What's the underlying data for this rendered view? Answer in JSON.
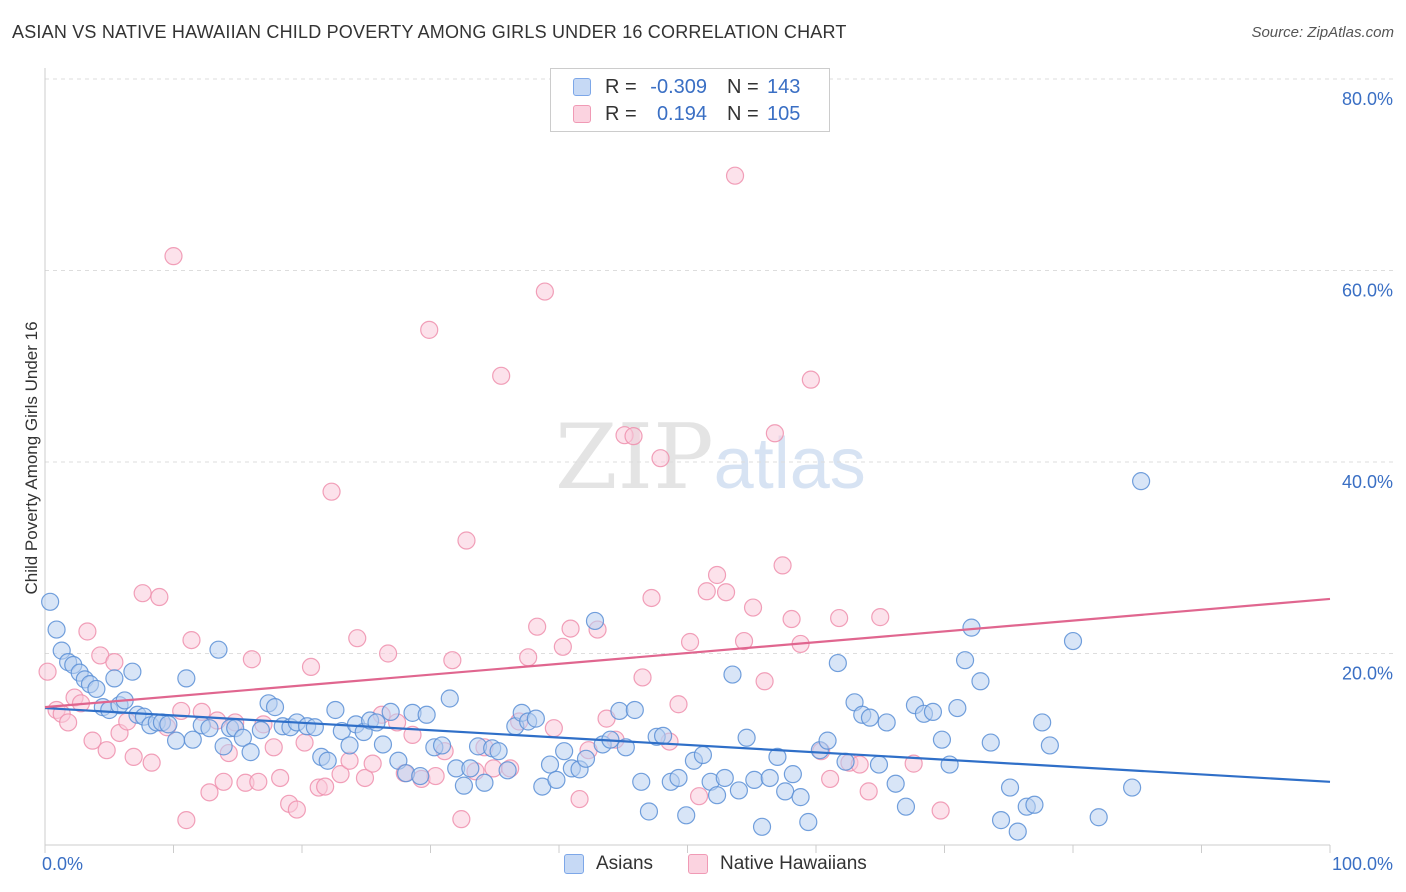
{
  "title": "ASIAN VS NATIVE HAWAIIAN CHILD POVERTY AMONG GIRLS UNDER 16 CORRELATION CHART",
  "source": "Source: ZipAtlas.com",
  "watermark": {
    "zip": "ZIP",
    "atlas": "atlas"
  },
  "legend_top": {
    "rows": [
      {
        "label": "R =",
        "r": "-0.309",
        "n_label": "N =",
        "n": "143",
        "color": "#7da7e8",
        "fill": "#c6d9f5"
      },
      {
        "label": "R =",
        "r": "0.194",
        "n_label": "N =",
        "n": "105",
        "color": "#f09ab5",
        "fill": "#fbd3e0"
      }
    ]
  },
  "legend_bottom": {
    "asians": "Asians",
    "hawaiians": "Native Hawaiians"
  },
  "chart_data": {
    "type": "scatter",
    "title": "ASIAN VS NATIVE HAWAIIAN CHILD POVERTY AMONG GIRLS UNDER 16 CORRELATION CHART",
    "xlabel": "",
    "ylabel": "Child Poverty Among Girls Under 16",
    "xlim": [
      0,
      100
    ],
    "ylim": [
      0,
      80
    ],
    "x_tick_labels": [
      "0.0%",
      "100.0%"
    ],
    "y_tick_labels": [
      "20.0%",
      "40.0%",
      "60.0%",
      "80.0%"
    ],
    "y_ticks": [
      20,
      40,
      60,
      80
    ],
    "grid": true,
    "colors": {
      "asians": "#5b8fd6",
      "asians_fill": "#b8d0f1",
      "asians_line": "#2f6fc8",
      "hawaiians": "#ee8fad",
      "hawaiians_fill": "#f9cbda",
      "hawaiians_line": "#e0668f",
      "axis_text": "#3a6fc4"
    },
    "series": [
      {
        "name": "Asians",
        "trend": [
          [
            0,
            14.3
          ],
          [
            100,
            6.6
          ]
        ],
        "points": [
          [
            0.4,
            25.4
          ],
          [
            0.9,
            22.5
          ],
          [
            1.3,
            20.3
          ],
          [
            1.8,
            19.1
          ],
          [
            2.2,
            18.8
          ],
          [
            2.7,
            18.0
          ],
          [
            3.1,
            17.3
          ],
          [
            3.5,
            16.8
          ],
          [
            4.0,
            16.3
          ],
          [
            4.5,
            14.4
          ],
          [
            5.0,
            14.1
          ],
          [
            5.4,
            17.4
          ],
          [
            5.8,
            14.6
          ],
          [
            6.2,
            15.1
          ],
          [
            6.8,
            18.1
          ],
          [
            7.2,
            13.6
          ],
          [
            7.7,
            13.4
          ],
          [
            8.2,
            12.5
          ],
          [
            8.7,
            12.8
          ],
          [
            9.1,
            12.8
          ],
          [
            9.6,
            12.6
          ],
          [
            10.2,
            10.9
          ],
          [
            11.0,
            17.4
          ],
          [
            11.5,
            11.0
          ],
          [
            12.2,
            12.5
          ],
          [
            12.8,
            12.2
          ],
          [
            13.5,
            20.4
          ],
          [
            13.9,
            10.3
          ],
          [
            14.4,
            12.2
          ],
          [
            14.8,
            12.2
          ],
          [
            15.4,
            11.2
          ],
          [
            16.0,
            9.7
          ],
          [
            16.8,
            12.0
          ],
          [
            17.4,
            14.8
          ],
          [
            17.9,
            14.4
          ],
          [
            18.5,
            12.4
          ],
          [
            19.1,
            12.3
          ],
          [
            19.6,
            12.8
          ],
          [
            20.4,
            12.4
          ],
          [
            21.0,
            12.3
          ],
          [
            21.5,
            9.2
          ],
          [
            22.0,
            8.8
          ],
          [
            22.6,
            14.1
          ],
          [
            23.1,
            11.9
          ],
          [
            23.7,
            10.4
          ],
          [
            24.2,
            12.6
          ],
          [
            24.8,
            11.8
          ],
          [
            25.3,
            13.0
          ],
          [
            25.8,
            12.8
          ],
          [
            26.3,
            10.5
          ],
          [
            26.9,
            13.9
          ],
          [
            27.5,
            8.8
          ],
          [
            28.1,
            7.5
          ],
          [
            28.6,
            13.8
          ],
          [
            29.2,
            7.2
          ],
          [
            29.7,
            13.6
          ],
          [
            30.3,
            10.2
          ],
          [
            30.9,
            10.4
          ],
          [
            31.5,
            15.3
          ],
          [
            32.0,
            8.0
          ],
          [
            32.6,
            6.2
          ],
          [
            33.1,
            8.0
          ],
          [
            33.7,
            10.3
          ],
          [
            34.2,
            6.5
          ],
          [
            34.8,
            10.1
          ],
          [
            35.3,
            9.8
          ],
          [
            36.0,
            7.8
          ],
          [
            36.6,
            12.4
          ],
          [
            37.1,
            13.8
          ],
          [
            37.6,
            12.9
          ],
          [
            38.2,
            13.2
          ],
          [
            38.7,
            6.1
          ],
          [
            39.3,
            8.4
          ],
          [
            39.8,
            6.8
          ],
          [
            40.4,
            9.8
          ],
          [
            41.0,
            8.0
          ],
          [
            41.6,
            7.9
          ],
          [
            42.1,
            9.0
          ],
          [
            42.8,
            23.4
          ],
          [
            43.4,
            10.5
          ],
          [
            44.0,
            11.0
          ],
          [
            44.7,
            14.0
          ],
          [
            45.2,
            10.2
          ],
          [
            45.9,
            14.1
          ],
          [
            46.4,
            6.6
          ],
          [
            47.0,
            3.5
          ],
          [
            47.6,
            11.3
          ],
          [
            48.1,
            11.4
          ],
          [
            48.7,
            6.6
          ],
          [
            49.3,
            7.0
          ],
          [
            49.9,
            3.1
          ],
          [
            50.5,
            8.8
          ],
          [
            51.2,
            9.4
          ],
          [
            51.8,
            6.6
          ],
          [
            52.3,
            5.2
          ],
          [
            52.9,
            7.0
          ],
          [
            53.5,
            17.8
          ],
          [
            54.0,
            5.7
          ],
          [
            54.6,
            11.2
          ],
          [
            55.2,
            6.8
          ],
          [
            55.8,
            1.9
          ],
          [
            56.4,
            7.0
          ],
          [
            57.0,
            9.2
          ],
          [
            57.6,
            5.6
          ],
          [
            58.2,
            7.4
          ],
          [
            58.8,
            5.0
          ],
          [
            59.4,
            2.4
          ],
          [
            60.3,
            9.9
          ],
          [
            60.9,
            10.9
          ],
          [
            61.7,
            19.0
          ],
          [
            62.3,
            8.7
          ],
          [
            63.0,
            14.9
          ],
          [
            63.6,
            13.6
          ],
          [
            64.2,
            13.3
          ],
          [
            64.9,
            8.4
          ],
          [
            65.5,
            12.8
          ],
          [
            66.2,
            6.4
          ],
          [
            67.0,
            4.0
          ],
          [
            67.7,
            14.6
          ],
          [
            68.4,
            13.7
          ],
          [
            69.1,
            13.9
          ],
          [
            69.8,
            11.0
          ],
          [
            70.4,
            8.4
          ],
          [
            71.0,
            14.3
          ],
          [
            71.6,
            19.3
          ],
          [
            72.1,
            22.7
          ],
          [
            72.8,
            17.1
          ],
          [
            73.6,
            10.7
          ],
          [
            74.4,
            2.6
          ],
          [
            75.1,
            6.0
          ],
          [
            75.7,
            1.4
          ],
          [
            76.4,
            4.0
          ],
          [
            77.0,
            4.2
          ],
          [
            77.6,
            12.8
          ],
          [
            78.2,
            10.4
          ],
          [
            80.0,
            21.3
          ],
          [
            82.0,
            2.9
          ],
          [
            84.6,
            6.0
          ],
          [
            85.3,
            38.0
          ]
        ]
      },
      {
        "name": "Native Hawaiians",
        "trend": [
          [
            0,
            14.4
          ],
          [
            100,
            25.7
          ]
        ],
        "points": [
          [
            0.2,
            18.1
          ],
          [
            0.9,
            14.1
          ],
          [
            1.3,
            13.7
          ],
          [
            1.8,
            12.8
          ],
          [
            2.3,
            15.4
          ],
          [
            2.8,
            14.8
          ],
          [
            3.3,
            22.3
          ],
          [
            3.7,
            10.9
          ],
          [
            4.3,
            19.8
          ],
          [
            4.8,
            9.9
          ],
          [
            5.4,
            19.1
          ],
          [
            5.8,
            11.7
          ],
          [
            6.4,
            12.9
          ],
          [
            6.9,
            9.2
          ],
          [
            7.6,
            26.3
          ],
          [
            8.3,
            8.6
          ],
          [
            8.9,
            25.9
          ],
          [
            9.5,
            12.3
          ],
          [
            10.0,
            61.5
          ],
          [
            10.6,
            14.0
          ],
          [
            11.0,
            2.6
          ],
          [
            11.4,
            21.4
          ],
          [
            12.2,
            13.9
          ],
          [
            12.8,
            5.5
          ],
          [
            13.4,
            13.0
          ],
          [
            13.9,
            6.6
          ],
          [
            14.3,
            9.6
          ],
          [
            14.8,
            12.8
          ],
          [
            15.6,
            6.5
          ],
          [
            16.1,
            19.4
          ],
          [
            16.6,
            6.6
          ],
          [
            17.0,
            12.6
          ],
          [
            17.8,
            10.2
          ],
          [
            18.3,
            7.0
          ],
          [
            19.0,
            4.3
          ],
          [
            19.6,
            3.7
          ],
          [
            20.2,
            10.7
          ],
          [
            20.7,
            18.6
          ],
          [
            21.3,
            6.0
          ],
          [
            21.8,
            6.1
          ],
          [
            22.3,
            36.9
          ],
          [
            23.0,
            7.4
          ],
          [
            23.7,
            8.8
          ],
          [
            24.3,
            21.6
          ],
          [
            24.9,
            7.0
          ],
          [
            25.5,
            8.5
          ],
          [
            26.2,
            13.6
          ],
          [
            26.7,
            20.0
          ],
          [
            27.4,
            12.8
          ],
          [
            28.0,
            7.5
          ],
          [
            28.6,
            11.5
          ],
          [
            29.3,
            6.9
          ],
          [
            29.9,
            53.8
          ],
          [
            30.4,
            7.2
          ],
          [
            31.1,
            9.8
          ],
          [
            31.7,
            19.3
          ],
          [
            32.4,
            2.7
          ],
          [
            32.8,
            31.8
          ],
          [
            33.5,
            7.7
          ],
          [
            34.2,
            10.2
          ],
          [
            34.9,
            8.0
          ],
          [
            35.5,
            49.0
          ],
          [
            36.2,
            8.0
          ],
          [
            36.9,
            12.9
          ],
          [
            37.6,
            19.6
          ],
          [
            38.3,
            22.8
          ],
          [
            38.9,
            57.8
          ],
          [
            39.6,
            12.2
          ],
          [
            40.3,
            20.7
          ],
          [
            40.9,
            22.6
          ],
          [
            41.6,
            4.8
          ],
          [
            42.3,
            9.9
          ],
          [
            43.0,
            22.5
          ],
          [
            43.7,
            13.2
          ],
          [
            44.4,
            11.0
          ],
          [
            45.1,
            42.8
          ],
          [
            45.8,
            42.7
          ],
          [
            46.5,
            17.5
          ],
          [
            47.2,
            25.8
          ],
          [
            47.9,
            40.4
          ],
          [
            48.6,
            10.8
          ],
          [
            49.3,
            14.7
          ],
          [
            50.2,
            21.2
          ],
          [
            50.9,
            5.1
          ],
          [
            51.5,
            26.5
          ],
          [
            52.3,
            28.2
          ],
          [
            53.0,
            26.4
          ],
          [
            53.7,
            69.9
          ],
          [
            54.4,
            21.3
          ],
          [
            55.1,
            24.8
          ],
          [
            56.0,
            17.1
          ],
          [
            56.8,
            43.0
          ],
          [
            57.4,
            29.2
          ],
          [
            58.1,
            23.6
          ],
          [
            58.8,
            21.0
          ],
          [
            59.6,
            48.6
          ],
          [
            60.4,
            9.8
          ],
          [
            61.1,
            6.9
          ],
          [
            61.8,
            23.7
          ],
          [
            62.6,
            8.6
          ],
          [
            63.4,
            8.4
          ],
          [
            64.1,
            5.6
          ],
          [
            65.0,
            23.8
          ],
          [
            67.6,
            8.5
          ],
          [
            69.7,
            3.6
          ]
        ]
      }
    ]
  }
}
